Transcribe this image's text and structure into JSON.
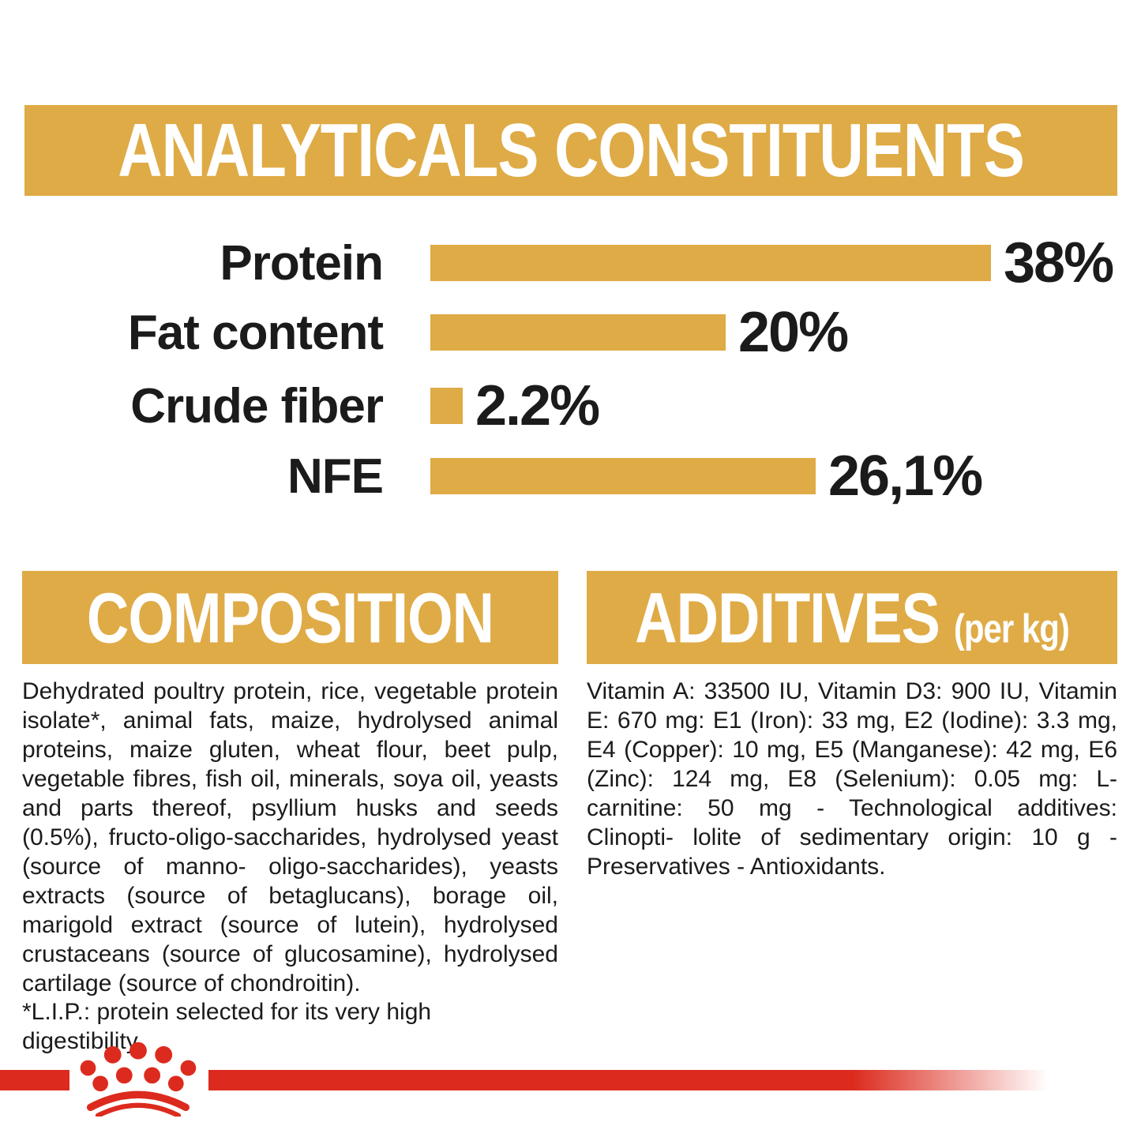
{
  "chart_data": {
    "type": "bar",
    "orientation": "horizontal",
    "title": "ANALYTICALS CONSTITUENTS",
    "categories": [
      "Protein",
      "Fat content",
      "Crude fiber",
      "NFE"
    ],
    "values": [
      38,
      20,
      2.2,
      26.1
    ],
    "value_labels": [
      "38%",
      "20%",
      "2.2%",
      "26,1%"
    ],
    "xlim": [
      0,
      38
    ],
    "grid": false,
    "legend": false,
    "bar_color": "#DFAB46"
  },
  "composition": {
    "heading": "COMPOSITION",
    "body": "Dehydrated poultry protein, rice, vegetable protein isolate*, animal fats, maize, hydrolysed animal proteins, maize gluten, wheat flour, beet pulp, vegetable fibres, fish oil, minerals, soya oil, yeasts and parts thereof, psyllium husks and seeds (0.5%), fructo-oligo-saccharides, hydrolysed yeast (source of manno- oligo-saccharides), yeasts extracts (source of betaglucans), borage oil, marigold extract (source of lutein), hydrolysed crustaceans (source of glucosamine), hydrolysed cartilage (source of chondroitin).",
    "footnote": "*L.I.P.: protein selected for its very high digestibility."
  },
  "additives": {
    "heading": "ADDITIVES",
    "heading_suffix": "(per kg)",
    "body": "Vitamin A: 33500 IU, Vitamin D3: 900 IU, Vitamin E: 670 mg: E1 (Iron): 33 mg, E2 (Iodine): 3.3 mg, E4 (Copper): 10 mg, E5 (Manganese): 42 mg, E6 (Zinc): 124 mg, E8 (Selenium): 0.05 mg: L-carnitine: 50 mg - Technological additives: Clinopti- lolite of sedimentary origin: 10 g - Preservatives - Antioxidants.",
    "footnote": ""
  },
  "footer": {
    "logo": "royal-canin-crown"
  },
  "colors": {
    "gold": "#DFAB46",
    "red": "#DC2B1E",
    "text": "#1B1B1B"
  }
}
